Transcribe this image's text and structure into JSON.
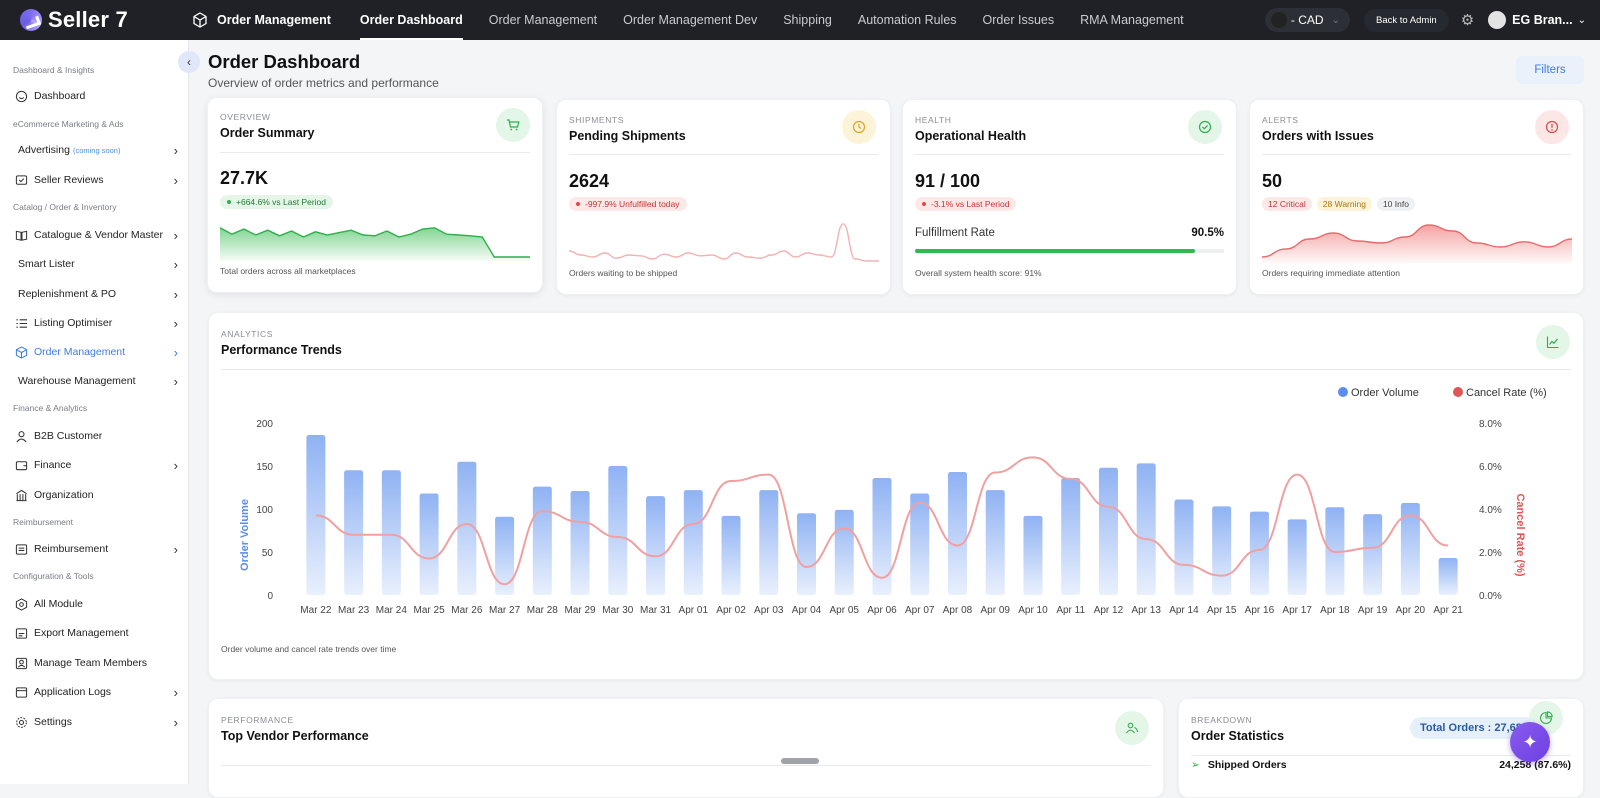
{
  "app": {
    "name": "Seller 7",
    "module": "Order Management"
  },
  "topnav": {
    "tabs": [
      {
        "label": "Order Dashboard",
        "active": true
      },
      {
        "label": "Order Management"
      },
      {
        "label": "Order Management Dev"
      },
      {
        "label": "Shipping"
      },
      {
        "label": "Automation Rules"
      },
      {
        "label": "Order Issues"
      },
      {
        "label": "RMA Management"
      }
    ],
    "currency": "- CAD",
    "back_admin": "Back to Admin",
    "user": "EG Bran..."
  },
  "sidebar": {
    "sections": [
      "Dashboard & Insights",
      "eCommerce Marketing & Ads",
      "Catalog / Order & Inventory",
      "Finance & Analytics",
      "Reimbursement",
      "Configuration & Tools"
    ],
    "items": [
      {
        "label": "Dashboard"
      },
      {
        "label": "Advertising",
        "note": "(coming soon)"
      },
      {
        "label": "Seller Reviews"
      },
      {
        "label": "Catalogue & Vendor Master"
      },
      {
        "label": "Smart Lister"
      },
      {
        "label": "Replenishment & PO"
      },
      {
        "label": "Listing Optimiser"
      },
      {
        "label": "Order Management",
        "active": true
      },
      {
        "label": "Warehouse Management"
      },
      {
        "label": "B2B Customer"
      },
      {
        "label": "Finance"
      },
      {
        "label": "Organization"
      },
      {
        "label": "Reimbursement"
      },
      {
        "label": "All Module"
      },
      {
        "label": "Export Management"
      },
      {
        "label": "Manage Team Members"
      },
      {
        "label": "Application Logs"
      },
      {
        "label": "Settings"
      }
    ]
  },
  "page": {
    "title": "Order Dashboard",
    "subtitle": "Overview of order metrics and performance",
    "filters": "Filters"
  },
  "cards": {
    "summary": {
      "eyebrow": "OVERVIEW",
      "title": "Order Summary",
      "value": "27.7K",
      "delta": "+664.6% vs Last Period",
      "foot": "Total orders across all marketplaces",
      "icon": "cart-icon"
    },
    "shipments": {
      "eyebrow": "SHIPMENTS",
      "title": "Pending Shipments",
      "value": "2624",
      "delta": "-997.9% Unfulfilled today",
      "foot": "Orders waiting to be shipped",
      "icon": "clock-icon"
    },
    "health": {
      "eyebrow": "HEALTH",
      "title": "Operational Health",
      "value": "91 / 100",
      "delta": "-3.1% vs Last Period",
      "fr_label": "Fulfillment Rate",
      "fr_value": "90.5%",
      "fr_fraction": 0.905,
      "foot": "Overall system health score: 91%",
      "icon": "check-circle-icon"
    },
    "alerts": {
      "eyebrow": "ALERTS",
      "title": "Orders with Issues",
      "value": "50",
      "tags": [
        "12 Critical",
        "28 Warning",
        "10 Info"
      ],
      "foot": "Orders requiring immediate attention",
      "icon": "alert-circle-icon"
    }
  },
  "trends": {
    "eyebrow": "ANALYTICS",
    "title": "Performance Trends",
    "foot": "Order volume and cancel rate trends over time",
    "icon": "line-chart-icon"
  },
  "vendor": {
    "eyebrow": "PERFORMANCE",
    "title": "Top Vendor Performance",
    "icon": "users-icon"
  },
  "stats": {
    "eyebrow": "BREAKDOWN",
    "title": "Order Statistics",
    "total": "Total Orders : 27,680",
    "row_label": "Shipped Orders",
    "row_value": "24,258 (87.6%)",
    "icon": "pie-chart-icon"
  },
  "colors": {
    "order_volume": "#5b8def",
    "cancel_rate": "#e05555",
    "accent": "#3c7de6"
  },
  "chart_data": {
    "type": "bar",
    "categories": [
      "Mar 22",
      "Mar 23",
      "Mar 24",
      "Mar 25",
      "Mar 26",
      "Mar 27",
      "Mar 28",
      "Mar 29",
      "Mar 30",
      "Mar 31",
      "Apr 01",
      "Apr 02",
      "Apr 03",
      "Apr 04",
      "Apr 05",
      "Apr 06",
      "Apr 07",
      "Apr 08",
      "Apr 09",
      "Apr 10",
      "Apr 11",
      "Apr 12",
      "Apr 13",
      "Apr 14",
      "Apr 15",
      "Apr 16",
      "Apr 17",
      "Apr 18",
      "Apr 19",
      "Apr 20",
      "Apr 21"
    ],
    "series": [
      {
        "name": "Order Volume",
        "type": "bar",
        "axis": "left",
        "values": [
          186,
          145,
          145,
          118,
          155,
          91,
          126,
          121,
          150,
          115,
          122,
          92,
          122,
          95,
          99,
          136,
          118,
          143,
          122,
          92,
          136,
          148,
          153,
          111,
          103,
          97,
          88,
          102,
          94,
          107,
          43
        ]
      },
      {
        "name": "Cancel Rate (%)",
        "type": "line",
        "axis": "right",
        "values": [
          3.7,
          2.8,
          2.8,
          1.7,
          3.3,
          0.5,
          3.9,
          3.4,
          2.7,
          1.8,
          3.3,
          5.3,
          5.6,
          1.3,
          3.1,
          0.8,
          4.3,
          2.3,
          5.7,
          6.4,
          5.4,
          4.1,
          2.6,
          1.4,
          0.9,
          2.1,
          5.6,
          2.0,
          2.2,
          3.7,
          2.3
        ]
      }
    ],
    "yticks_left": [
      "200",
      "150",
      "100",
      "50",
      "0"
    ],
    "yticks_right": [
      "8.0%",
      "6.0%",
      "4.0%",
      "2.0%",
      "0.0%"
    ],
    "ylim_left": [
      0,
      200
    ],
    "ylim_right": [
      0,
      8
    ],
    "ylabel_left": "Order Volume",
    "ylabel_right": "Cancel Rate (%)",
    "legend": "top-right",
    "grid": false
  },
  "sparklines": {
    "summary": [
      0.78,
      0.62,
      0.75,
      0.6,
      0.72,
      0.58,
      0.7,
      0.55,
      0.68,
      0.6,
      0.66,
      0.72,
      0.6,
      0.58,
      0.7,
      0.55,
      0.62,
      0.75,
      0.78,
      0.62,
      0.6,
      0.58,
      0.55,
      0.05,
      0.05,
      0.05,
      0.05
    ],
    "shipments": [
      0.3,
      0.2,
      0.15,
      0.25,
      0.12,
      0.2,
      0.18,
      0.1,
      0.22,
      0.15,
      0.25,
      0.18,
      0.2,
      0.1,
      0.25,
      0.15,
      0.12,
      0.2,
      0.3,
      0.15,
      0.25,
      0.2,
      0.15,
      0.98,
      0.1,
      0.05,
      0.05
    ],
    "alerts": [
      0.1,
      0.3,
      0.55,
      0.7,
      0.5,
      0.45,
      0.6,
      0.9,
      0.75,
      0.45,
      0.35,
      0.48,
      0.35,
      0.55
    ]
  }
}
